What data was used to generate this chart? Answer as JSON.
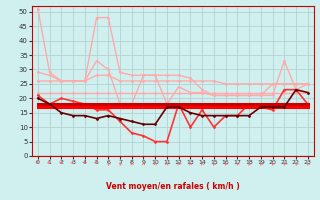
{
  "background_color": "#d0f0f0",
  "grid_color": "#b0cccc",
  "xlabel": "Vent moyen/en rafales ( km/h )",
  "x": [
    0,
    1,
    2,
    3,
    4,
    5,
    6,
    7,
    8,
    9,
    10,
    11,
    12,
    13,
    14,
    15,
    16,
    17,
    18,
    19,
    20,
    21,
    22,
    23
  ],
  "series": [
    {
      "color": "#ffaaaa",
      "lw": 1.0,
      "marker": "D",
      "ms": 1.5,
      "y": [
        51,
        29,
        26,
        26,
        26,
        48,
        48,
        29,
        28,
        28,
        28,
        28,
        28,
        27,
        23,
        21,
        21,
        21,
        21,
        21,
        21,
        33,
        23,
        25
      ]
    },
    {
      "color": "#ffaaaa",
      "lw": 1.0,
      "marker": "D",
      "ms": 1.5,
      "y": [
        29,
        28,
        26,
        26,
        26,
        33,
        30,
        18,
        18,
        28,
        28,
        18,
        24,
        22,
        22,
        21,
        21,
        21,
        21,
        21,
        25,
        25,
        25,
        25
      ]
    },
    {
      "color": "#ffaaaa",
      "lw": 1.0,
      "marker": "D",
      "ms": 1.5,
      "y": [
        26,
        26,
        26,
        26,
        26,
        28,
        28,
        26,
        26,
        26,
        26,
        26,
        26,
        26,
        26,
        26,
        25,
        25,
        25,
        25,
        25,
        25,
        25,
        25
      ]
    },
    {
      "color": "#ffaaaa",
      "lw": 1.0,
      "marker": "D",
      "ms": 1.5,
      "y": [
        22,
        22,
        22,
        22,
        22,
        22,
        22,
        22,
        22,
        22,
        22,
        22,
        22,
        22,
        22,
        22,
        22,
        22,
        22,
        22,
        22,
        22,
        22,
        22
      ]
    },
    {
      "color": "#ff3333",
      "lw": 1.2,
      "marker": "D",
      "ms": 1.5,
      "y": [
        21,
        18,
        20,
        19,
        18,
        16,
        16,
        12,
        8,
        7,
        5,
        5,
        18,
        10,
        16,
        10,
        14,
        14,
        18,
        17,
        16,
        23,
        23,
        18
      ]
    },
    {
      "color": "#cc0000",
      "lw": 2.2,
      "marker": null,
      "ms": 0,
      "y": [
        18,
        18,
        18,
        18,
        18,
        18,
        18,
        18,
        18,
        18,
        18,
        18,
        18,
        18,
        18,
        18,
        18,
        18,
        18,
        18,
        18,
        18,
        18,
        18
      ]
    },
    {
      "color": "#ff0000",
      "lw": 2.2,
      "marker": null,
      "ms": 0,
      "y": [
        17,
        17,
        17,
        17,
        17,
        17,
        17,
        17,
        17,
        17,
        17,
        17,
        17,
        17,
        17,
        17,
        17,
        17,
        17,
        17,
        17,
        17,
        17,
        17
      ]
    },
    {
      "color": "#660000",
      "lw": 1.2,
      "marker": "D",
      "ms": 1.5,
      "y": [
        20,
        18,
        15,
        14,
        14,
        13,
        14,
        13,
        12,
        11,
        11,
        17,
        17,
        15,
        14,
        14,
        14,
        14,
        14,
        17,
        17,
        17,
        23,
        22
      ]
    }
  ],
  "arrow_angles": [
    45,
    60,
    30,
    60,
    45,
    45,
    225,
    225,
    200,
    190,
    180,
    175,
    190,
    200,
    200,
    210,
    210,
    215,
    215,
    215,
    220,
    220,
    225,
    225
  ],
  "ylim": [
    0,
    52
  ],
  "xlim": [
    -0.5,
    23.5
  ],
  "yticks": [
    0,
    5,
    10,
    15,
    20,
    25,
    30,
    35,
    40,
    45,
    50
  ],
  "xticks": [
    0,
    1,
    2,
    3,
    4,
    5,
    6,
    7,
    8,
    9,
    10,
    11,
    12,
    13,
    14,
    15,
    16,
    17,
    18,
    19,
    20,
    21,
    22,
    23
  ],
  "figsize": [
    3.2,
    2.0
  ],
  "dpi": 100
}
